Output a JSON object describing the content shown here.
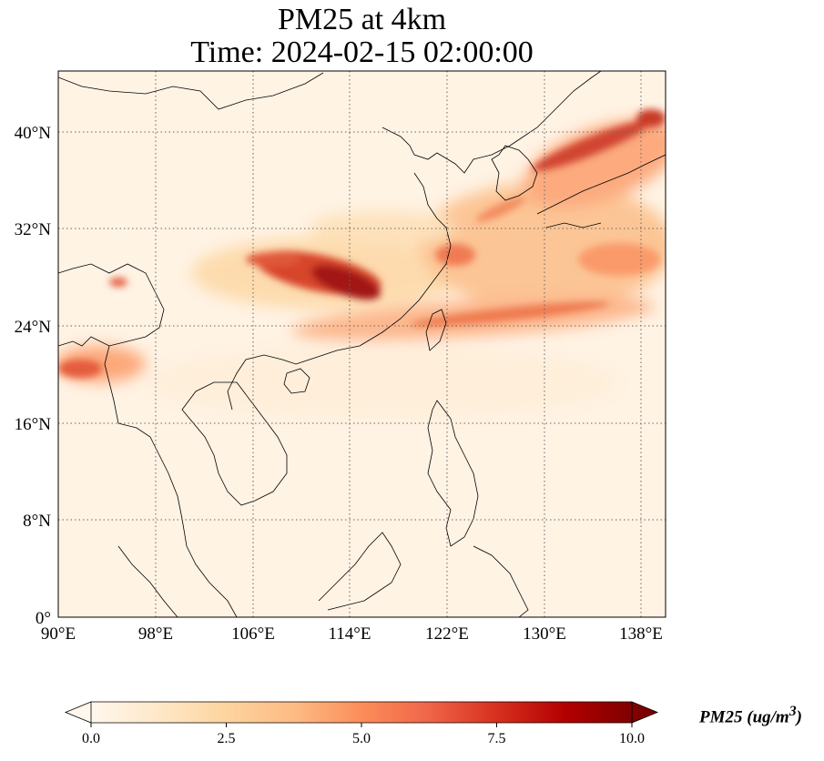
{
  "title": {
    "line1": "PM25 at 4km",
    "line2": "Time: 2024-02-15 02:00:00"
  },
  "map": {
    "projection": "PlateCarree",
    "lon_range": [
      90,
      140
    ],
    "lat_range": [
      0,
      45
    ],
    "gridlines": "dotted",
    "x_ticks": [
      {
        "value": 90,
        "label": "90°E"
      },
      {
        "value": 98,
        "label": "98°E"
      },
      {
        "value": 106,
        "label": "106°E"
      },
      {
        "value": 114,
        "label": "114°E"
      },
      {
        "value": 122,
        "label": "122°E"
      },
      {
        "value": 130,
        "label": "130°E"
      },
      {
        "value": 138,
        "label": "138°E"
      }
    ],
    "y_ticks": [
      {
        "value": 0,
        "label": "0°"
      },
      {
        "value": 8,
        "label": "8°N"
      },
      {
        "value": 16,
        "label": "16°N"
      },
      {
        "value": 24,
        "label": "24°N"
      },
      {
        "value": 32,
        "label": "32°N"
      },
      {
        "value": 40,
        "label": "40°N"
      }
    ]
  },
  "colorbar": {
    "colormap": "OrRd",
    "extend": "both",
    "min": 0,
    "max": 10,
    "ticks": [
      {
        "value": 0,
        "label": "0.0"
      },
      {
        "value": 2.5,
        "label": "2.5"
      },
      {
        "value": 5,
        "label": "5.0"
      },
      {
        "value": 7.5,
        "label": "7.5"
      },
      {
        "value": 10,
        "label": "10.0"
      }
    ],
    "label": "PM25 (ug/m",
    "label_sup": "3",
    "label_close": ")"
  },
  "colors": {
    "background": "#fff7ec",
    "low": "#fee8c8",
    "mid": "#fc8d59",
    "high": "#d7301f",
    "max": "#7f0000"
  }
}
